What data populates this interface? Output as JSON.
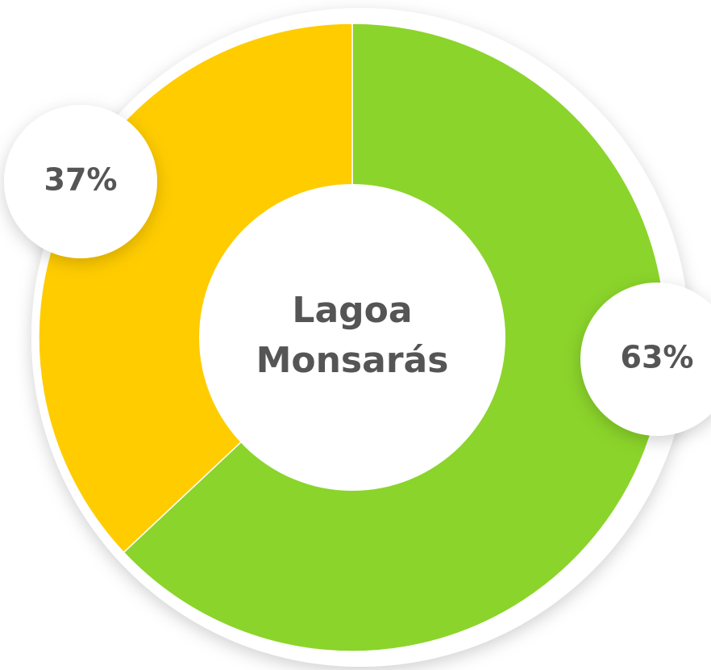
{
  "chart_data": {
    "type": "donut",
    "title": "Lagoa Monsarás",
    "values": [
      63,
      37
    ],
    "value_labels": [
      "63%",
      "37%"
    ],
    "colors": [
      "#8bd42b",
      "#ffcc00"
    ]
  }
}
